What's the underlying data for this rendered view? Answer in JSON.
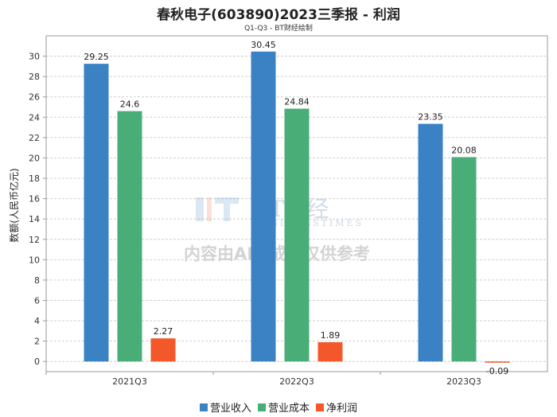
{
  "chart_data": {
    "type": "bar",
    "title": "春秋电子(603890)2023三季报 - 利润",
    "subtitle": "Q1-Q3 - BT财经绘制",
    "ylabel": "数额(人民币亿元)",
    "ylim": [
      -1,
      32
    ],
    "yticks": [
      0,
      2,
      4,
      6,
      8,
      10,
      12,
      14,
      16,
      18,
      20,
      22,
      24,
      26,
      28,
      30
    ],
    "grid": true,
    "legend_position": "bottom",
    "categories": [
      "2021Q3",
      "2022Q3",
      "2023Q3"
    ],
    "series": [
      {
        "name": "营业收入",
        "color": "#3a82c3",
        "values": [
          29.25,
          30.45,
          23.35
        ],
        "labels": [
          "29.25",
          "30.45",
          "23.35"
        ]
      },
      {
        "name": "营业成本",
        "color": "#49ad78",
        "values": [
          24.6,
          24.84,
          20.08
        ],
        "labels": [
          "24.6",
          "24.84",
          "20.08"
        ]
      },
      {
        "name": "净利润",
        "color": "#f2582a",
        "values": [
          2.27,
          1.89,
          -0.09
        ],
        "labels": [
          "2.27",
          "1.89",
          "-0.09"
        ]
      }
    ]
  },
  "watermark": {
    "brand": "BT财经",
    "brand_en": "BUSINESSTIMES",
    "notice": "内容由AI生成，仅供参考"
  }
}
